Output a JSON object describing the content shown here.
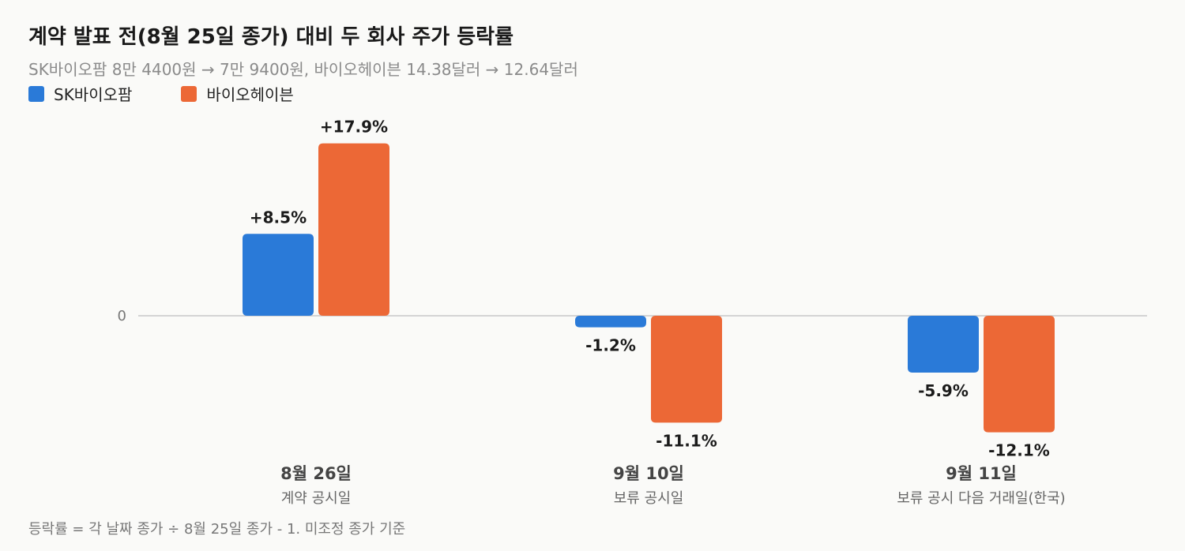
{
  "title": "계약 발표 전(8월 25일 종가) 대비 두 회사 주가 등락률",
  "subtitle": "SK바이오팜 8만 4400원 → 7만 9400원, 바이오헤이븐 14.38달러 → 12.64달러",
  "footnote": "등락률 = 각 날짜 종가 ÷ 8월 25일 종가 - 1. 미조정 종가 기준",
  "chart_data": {
    "type": "bar",
    "categories": [
      "8월 26일",
      "9월 10일",
      "9월 11일"
    ],
    "category_sublabels": [
      "계약 공시일",
      "보류 공시일",
      "보류 공시 다음 거래일(한국)"
    ],
    "series": [
      {
        "name": "SK바이오팜",
        "color": "#2a7ad8",
        "values": [
          8.5,
          -1.2,
          -5.9
        ],
        "labels": [
          "+8.5%",
          "-1.2%",
          "-5.9%"
        ]
      },
      {
        "name": "바이오헤이븐",
        "color": "#ec6836",
        "values": [
          17.9,
          -11.1,
          -12.1
        ],
        "labels": [
          "+17.9%",
          "-11.1%",
          "-12.1%"
        ]
      }
    ],
    "yticks": [
      {
        "value": 0,
        "label": "0"
      }
    ],
    "ylim": [
      -13,
      19
    ],
    "grid": false,
    "legend": "top-left"
  }
}
